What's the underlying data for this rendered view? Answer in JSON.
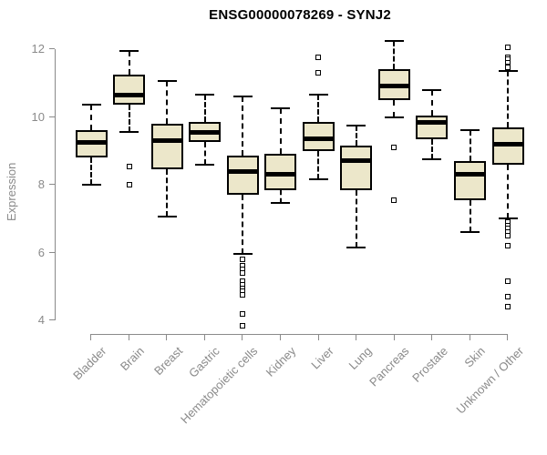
{
  "chart_data": {
    "type": "boxplot",
    "title": "ENSG00000078269 - SYNJ2",
    "xlabel": "",
    "ylabel": "Expression",
    "ylim": [
      4,
      12
    ],
    "yticks": [
      4,
      6,
      8,
      10,
      12
    ],
    "grid": false,
    "legend": "none",
    "axis_color": "#8a8a8a",
    "box_fill_color": "#ece7ca",
    "box_border_color": "#000000",
    "categories": [
      "Bladder",
      "Brain",
      "Breast",
      "Gastric",
      "Hematopoietic cells",
      "Kidney",
      "Liver",
      "Lung",
      "Pancreas",
      "Prostate",
      "Skin",
      "Unknown / Other"
    ],
    "series": [
      {
        "category": "Bladder",
        "whisker_low": 8.0,
        "q1": 8.8,
        "median": 9.25,
        "q3": 9.6,
        "whisker_high": 10.35,
        "outliers": []
      },
      {
        "category": "Brain",
        "whisker_low": 9.55,
        "q1": 10.35,
        "median": 10.65,
        "q3": 11.25,
        "whisker_high": 11.95,
        "outliers": [
          8.55,
          8.0
        ]
      },
      {
        "category": "Breast",
        "whisker_low": 7.05,
        "q1": 8.45,
        "median": 9.3,
        "q3": 9.8,
        "whisker_high": 11.05,
        "outliers": []
      },
      {
        "category": "Gastric",
        "whisker_low": 8.6,
        "q1": 9.25,
        "median": 9.55,
        "q3": 9.85,
        "whisker_high": 10.65,
        "outliers": []
      },
      {
        "category": "Hematopoietic cells",
        "whisker_low": 5.95,
        "q1": 7.7,
        "median": 8.4,
        "q3": 8.85,
        "whisker_high": 10.6,
        "outliers": [
          5.8,
          5.6,
          5.5,
          5.4,
          5.15,
          5.05,
          4.95,
          4.85,
          4.75,
          4.2,
          3.85
        ]
      },
      {
        "category": "Kidney",
        "whisker_low": 7.45,
        "q1": 7.85,
        "median": 8.3,
        "q3": 8.9,
        "whisker_high": 10.25,
        "outliers": []
      },
      {
        "category": "Liver",
        "whisker_low": 8.15,
        "q1": 9.0,
        "median": 9.35,
        "q3": 9.85,
        "whisker_high": 10.65,
        "outliers": [
          11.75,
          11.3
        ]
      },
      {
        "category": "Lung",
        "whisker_low": 6.15,
        "q1": 7.85,
        "median": 8.7,
        "q3": 9.15,
        "whisker_high": 9.75,
        "outliers": []
      },
      {
        "category": "Pancreas",
        "whisker_low": 10.0,
        "q1": 10.5,
        "median": 10.9,
        "q3": 11.4,
        "whisker_high": 12.25,
        "outliers": [
          9.1,
          7.55
        ]
      },
      {
        "category": "Prostate",
        "whisker_low": 8.75,
        "q1": 9.35,
        "median": 9.85,
        "q3": 10.05,
        "whisker_high": 10.8,
        "outliers": []
      },
      {
        "category": "Skin",
        "whisker_low": 6.6,
        "q1": 7.55,
        "median": 8.3,
        "q3": 8.7,
        "whisker_high": 9.6,
        "outliers": []
      },
      {
        "category": "Unknown / Other",
        "whisker_low": 7.0,
        "q1": 8.6,
        "median": 9.2,
        "q3": 9.7,
        "whisker_high": 11.35,
        "outliers": [
          12.05,
          11.75,
          11.7,
          11.6,
          11.5,
          11.45,
          6.9,
          6.8,
          6.7,
          6.6,
          6.5,
          6.2,
          5.15,
          4.7,
          4.4
        ]
      }
    ]
  }
}
